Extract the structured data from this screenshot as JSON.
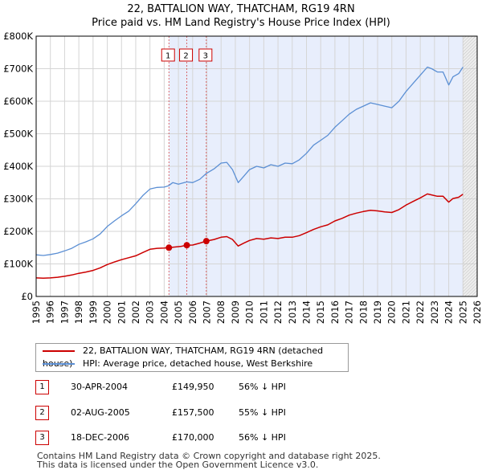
{
  "title_line1": "22, BATTALION WAY, THATCHAM, RG19 4RN",
  "title_line2": "Price paid vs. HM Land Registry's House Price Index (HPI)",
  "colors": {
    "property": "#cc0000",
    "hpi": "#5b8fd4",
    "shade": "#e8eefc",
    "grid": "#d5d5d5"
  },
  "chart_data": {
    "type": "line",
    "xlim": [
      1995,
      2026
    ],
    "ylim": [
      0,
      800000
    ],
    "xticks": [
      1995,
      1996,
      1997,
      1998,
      1999,
      2000,
      2001,
      2002,
      2003,
      2004,
      2005,
      2006,
      2007,
      2008,
      2009,
      2010,
      2011,
      2012,
      2013,
      2014,
      2015,
      2016,
      2017,
      2018,
      2019,
      2020,
      2021,
      2022,
      2023,
      2024,
      2025,
      2026
    ],
    "yticks": [
      {
        "value": 0,
        "label": "£0"
      },
      {
        "value": 100000,
        "label": "£100K"
      },
      {
        "value": 200000,
        "label": "£200K"
      },
      {
        "value": 300000,
        "label": "£300K"
      },
      {
        "value": 400000,
        "label": "£400K"
      },
      {
        "value": 500000,
        "label": "£500K"
      },
      {
        "value": 600000,
        "label": "£600K"
      },
      {
        "value": 700000,
        "label": "£700K"
      },
      {
        "value": 800000,
        "label": "£800K"
      }
    ],
    "shaded_from": 2004.33,
    "future_from": 2025.0,
    "series": [
      {
        "name": "HPI: Average price, detached house, West Berkshire",
        "color": "#5b8fd4",
        "points": [
          [
            1995.0,
            128000
          ],
          [
            1995.5,
            126000
          ],
          [
            1996.0,
            129000
          ],
          [
            1996.5,
            133000
          ],
          [
            1997.0,
            140000
          ],
          [
            1997.5,
            148000
          ],
          [
            1998.0,
            160000
          ],
          [
            1998.5,
            168000
          ],
          [
            1999.0,
            177000
          ],
          [
            1999.5,
            192000
          ],
          [
            2000.0,
            215000
          ],
          [
            2000.5,
            232000
          ],
          [
            2001.0,
            248000
          ],
          [
            2001.5,
            262000
          ],
          [
            2002.0,
            285000
          ],
          [
            2002.5,
            310000
          ],
          [
            2003.0,
            330000
          ],
          [
            2003.5,
            335000
          ],
          [
            2004.0,
            336000
          ],
          [
            2004.3,
            340000
          ],
          [
            2004.6,
            350000
          ],
          [
            2005.0,
            345000
          ],
          [
            2005.6,
            352000
          ],
          [
            2006.0,
            350000
          ],
          [
            2006.5,
            360000
          ],
          [
            2006.96,
            378000
          ],
          [
            2007.5,
            392000
          ],
          [
            2008.0,
            410000
          ],
          [
            2008.4,
            412000
          ],
          [
            2008.8,
            390000
          ],
          [
            2009.2,
            350000
          ],
          [
            2009.6,
            370000
          ],
          [
            2010.0,
            390000
          ],
          [
            2010.5,
            400000
          ],
          [
            2011.0,
            395000
          ],
          [
            2011.5,
            405000
          ],
          [
            2012.0,
            400000
          ],
          [
            2012.5,
            410000
          ],
          [
            2013.0,
            408000
          ],
          [
            2013.5,
            420000
          ],
          [
            2014.0,
            440000
          ],
          [
            2014.5,
            465000
          ],
          [
            2015.0,
            480000
          ],
          [
            2015.5,
            495000
          ],
          [
            2016.0,
            520000
          ],
          [
            2016.5,
            540000
          ],
          [
            2017.0,
            560000
          ],
          [
            2017.5,
            575000
          ],
          [
            2018.0,
            585000
          ],
          [
            2018.5,
            595000
          ],
          [
            2019.0,
            590000
          ],
          [
            2019.5,
            585000
          ],
          [
            2020.0,
            580000
          ],
          [
            2020.5,
            600000
          ],
          [
            2021.0,
            630000
          ],
          [
            2021.5,
            655000
          ],
          [
            2022.0,
            680000
          ],
          [
            2022.5,
            705000
          ],
          [
            2022.8,
            700000
          ],
          [
            2023.2,
            690000
          ],
          [
            2023.6,
            690000
          ],
          [
            2024.0,
            650000
          ],
          [
            2024.3,
            675000
          ],
          [
            2024.7,
            685000
          ],
          [
            2025.0,
            705000
          ]
        ]
      },
      {
        "name": "22, BATTALION WAY, THATCHAM, RG19 4RN (detached house)",
        "color": "#cc0000",
        "points": [
          [
            1995.0,
            57000
          ],
          [
            1995.5,
            56000
          ],
          [
            1996.0,
            57000
          ],
          [
            1996.5,
            59000
          ],
          [
            1997.0,
            62000
          ],
          [
            1997.5,
            66000
          ],
          [
            1998.0,
            71000
          ],
          [
            1998.5,
            75000
          ],
          [
            1999.0,
            80000
          ],
          [
            1999.5,
            88000
          ],
          [
            2000.0,
            98000
          ],
          [
            2000.5,
            106000
          ],
          [
            2001.0,
            113000
          ],
          [
            2001.5,
            119000
          ],
          [
            2002.0,
            125000
          ],
          [
            2002.5,
            135000
          ],
          [
            2003.0,
            145000
          ],
          [
            2003.5,
            148000
          ],
          [
            2004.0,
            149000
          ],
          [
            2004.33,
            149950
          ],
          [
            2004.8,
            152000
          ],
          [
            2005.2,
            154000
          ],
          [
            2005.59,
            157500
          ],
          [
            2006.0,
            158000
          ],
          [
            2006.5,
            164000
          ],
          [
            2006.96,
            170000
          ],
          [
            2007.5,
            175000
          ],
          [
            2008.0,
            182000
          ],
          [
            2008.4,
            184000
          ],
          [
            2008.8,
            175000
          ],
          [
            2009.2,
            155000
          ],
          [
            2009.6,
            164000
          ],
          [
            2010.0,
            172000
          ],
          [
            2010.5,
            178000
          ],
          [
            2011.0,
            176000
          ],
          [
            2011.5,
            180000
          ],
          [
            2012.0,
            178000
          ],
          [
            2012.5,
            182000
          ],
          [
            2013.0,
            182000
          ],
          [
            2013.5,
            187000
          ],
          [
            2014.0,
            196000
          ],
          [
            2014.5,
            206000
          ],
          [
            2015.0,
            214000
          ],
          [
            2015.5,
            220000
          ],
          [
            2016.0,
            232000
          ],
          [
            2016.5,
            240000
          ],
          [
            2017.0,
            250000
          ],
          [
            2017.5,
            256000
          ],
          [
            2018.0,
            261000
          ],
          [
            2018.5,
            265000
          ],
          [
            2019.0,
            263000
          ],
          [
            2019.5,
            260000
          ],
          [
            2020.0,
            258000
          ],
          [
            2020.5,
            267000
          ],
          [
            2021.0,
            281000
          ],
          [
            2021.5,
            292000
          ],
          [
            2022.0,
            303000
          ],
          [
            2022.5,
            315000
          ],
          [
            2022.8,
            312000
          ],
          [
            2023.2,
            308000
          ],
          [
            2023.6,
            308000
          ],
          [
            2024.0,
            290000
          ],
          [
            2024.3,
            301000
          ],
          [
            2024.7,
            305000
          ],
          [
            2025.0,
            314000
          ]
        ]
      }
    ],
    "markers": [
      {
        "label": "1",
        "x": 2004.33,
        "y": 149950
      },
      {
        "label": "2",
        "x": 2005.59,
        "y": 157500
      },
      {
        "label": "3",
        "x": 2006.96,
        "y": 170000
      }
    ]
  },
  "legend": {
    "property_label": "22, BATTALION WAY, THATCHAM, RG19 4RN (detached house)",
    "hpi_label": "HPI: Average price, detached house, West Berkshire"
  },
  "transactions": [
    {
      "num": "1",
      "date": "30-APR-2004",
      "price": "£149,950",
      "hpi": "56% ↓ HPI"
    },
    {
      "num": "2",
      "date": "02-AUG-2005",
      "price": "£157,500",
      "hpi": "55% ↓ HPI"
    },
    {
      "num": "3",
      "date": "18-DEC-2006",
      "price": "£170,000",
      "hpi": "56% ↓ HPI"
    }
  ],
  "footer": {
    "line1": "Contains HM Land Registry data © Crown copyright and database right 2025.",
    "line2": "This data is licensed under the Open Government Licence v3.0."
  }
}
